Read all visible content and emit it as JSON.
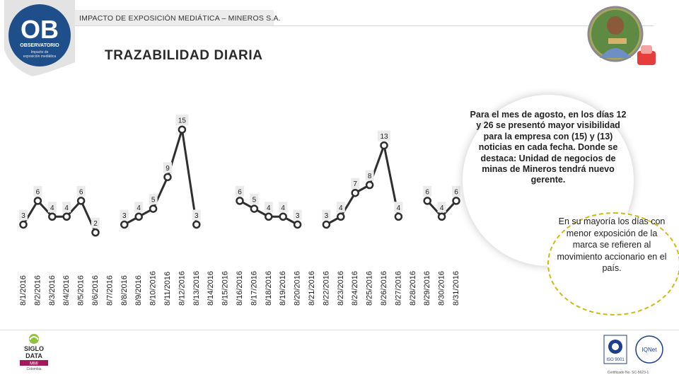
{
  "header": {
    "title": "IMPACTO DE EXPOSICIÓN MEDIÁTICA – MINEROS S.A."
  },
  "logo": {
    "text": "OB",
    "name": "OBSERVATORIO",
    "subtitle_1": "Impacto de",
    "subtitle_2": "exposición mediática"
  },
  "page": {
    "title": "TRAZABILIDAD DIARIA"
  },
  "callout": {
    "text": "Para el mes de agosto, en los días 12 y 26 se presentó mayor visibilidad para la empresa con (15) y (13) noticias en cada fecha. Donde se destaca: Unidad de negocios de minas de Mineros tendrá nuevo gerente."
  },
  "note": {
    "text": "En su mayoría los días con menor exposición de la marca se refieren al movimiento accionario en el país."
  },
  "footer": {
    "brand_1": "SIGLO",
    "brand_2": "DATA",
    "brand_3": "MMI",
    "brand_4": "Colombia",
    "cert_1": "ISO 9001",
    "cert_2": "IQNet",
    "cert_3": "Certificado No. SC-5623-1"
  },
  "colors": {
    "line": "#2f2f2f",
    "marker_fill": "#ffffff",
    "label_fill": "#ebebeb",
    "logo_blue": "#1f4f8a",
    "note_border": "#cdbb14"
  },
  "chart_data": {
    "type": "line",
    "title": "",
    "xlabel": "",
    "ylabel": "",
    "categories": [
      "8/1/2016",
      "8/2/2016",
      "8/3/2016",
      "8/4/2016",
      "8/5/2016",
      "8/6/2016",
      "8/7/2016",
      "8/8/2016",
      "8/9/2016",
      "8/10/2016",
      "8/11/2016",
      "8/12/2016",
      "8/13/2016",
      "8/14/2016",
      "8/15/2016",
      "8/16/2016",
      "8/17/2016",
      "8/18/2016",
      "8/19/2016",
      "8/20/2016",
      "8/21/2016",
      "8/22/2016",
      "8/23/2016",
      "8/24/2016",
      "8/25/2016",
      "8/26/2016",
      "8/27/2016",
      "8/28/2016",
      "8/29/2016",
      "8/30/2016",
      "8/31/2016"
    ],
    "series": [
      {
        "name": "",
        "values": [
          3,
          6,
          4,
          4,
          6,
          2,
          null,
          3,
          4,
          5,
          9,
          15,
          3,
          null,
          null,
          6,
          5,
          4,
          4,
          3,
          null,
          3,
          4,
          7,
          8,
          13,
          4,
          null,
          6,
          4,
          6
        ]
      }
    ],
    "ylim": [
      0,
      16
    ],
    "grid": false,
    "legend": "none"
  }
}
